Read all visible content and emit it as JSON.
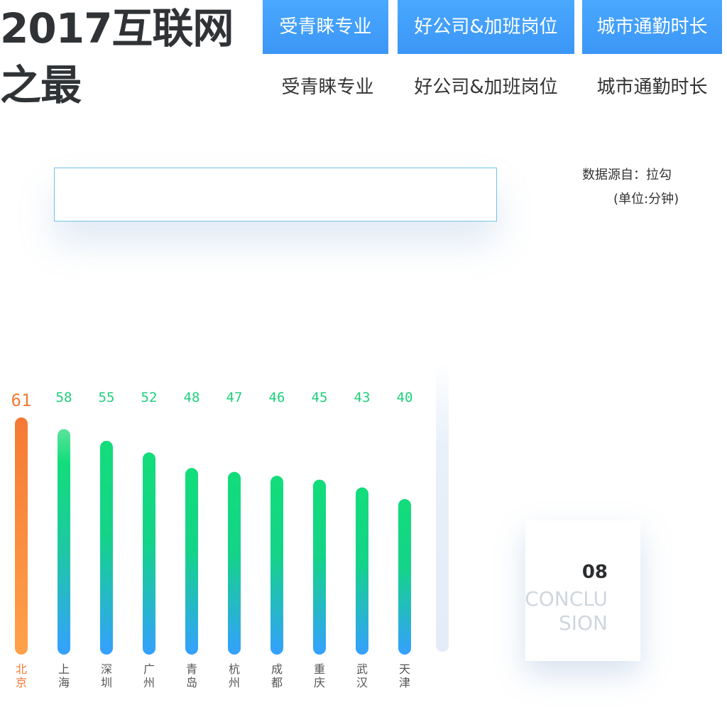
{
  "title": {
    "line1": "2017互联网",
    "line2": "之最"
  },
  "tabs": [
    {
      "label": "受青睐专业"
    },
    {
      "label": "好公司&加班岗位"
    },
    {
      "label": "城市通勤时长"
    }
  ],
  "subtabs": [
    {
      "label": "受青睐专业"
    },
    {
      "label": "好公司&加班岗位"
    },
    {
      "label": "城市通勤时长"
    }
  ],
  "source_text": "数据源自：拉勾",
  "unit_text": "(单位:分钟)",
  "colors": {
    "tab_blue": "#3b96f5",
    "bar_green": "#12dd7a",
    "bar_blue": "#35a0ff",
    "highlight_orange": "#f47a35",
    "highlight_orange_light": "#ffa14a",
    "value_green": "#1fcf7c",
    "label_gray": "#555555"
  },
  "chart_data": {
    "type": "bar",
    "categories": [
      "北京",
      "上海",
      "深圳",
      "广州",
      "青岛",
      "杭州",
      "成都",
      "重庆",
      "武汉",
      "天津"
    ],
    "values": [
      61,
      58,
      55,
      52,
      48,
      47,
      46,
      45,
      43,
      40
    ],
    "highlight_index": 0,
    "value_labels": true,
    "grid": false,
    "legend": "none",
    "ylim": [
      0,
      61
    ]
  },
  "conclusion": {
    "number": "08",
    "word_line1": "CONCLU",
    "word_line2": "SION"
  }
}
